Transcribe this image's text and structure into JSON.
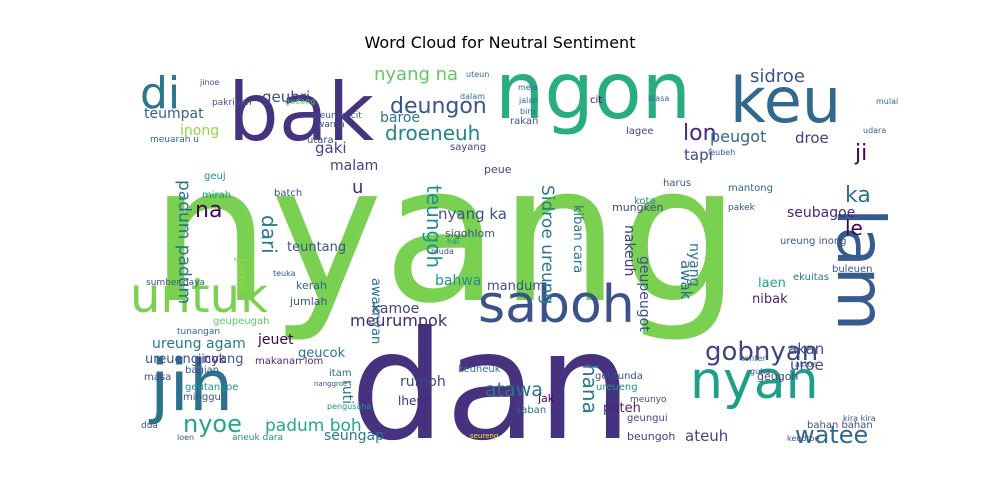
{
  "chart_data": {
    "type": "wordcloud",
    "title": "Word Cloud for Neutral Sentiment",
    "background": "#ffffff",
    "colormap": [
      "#440154",
      "#3b528b",
      "#21918c",
      "#5ec962",
      "#fde725"
    ],
    "words": [
      {
        "text": "nyang",
        "weight": 1.0,
        "color": "#7ad151"
      },
      {
        "text": "dan",
        "weight": 0.78,
        "color": "#46327e"
      },
      {
        "text": "ngon",
        "weight": 0.56,
        "color": "#27ad81"
      },
      {
        "text": "bak",
        "weight": 0.5,
        "color": "#46337e"
      },
      {
        "text": "keu",
        "weight": 0.42,
        "color": "#31688e"
      },
      {
        "text": "lam",
        "weight": 0.42,
        "color": "#365c8d"
      },
      {
        "text": "jih",
        "weight": 0.42,
        "color": "#2c728e"
      },
      {
        "text": "saboh",
        "weight": 0.34,
        "color": "#3b528b"
      },
      {
        "text": "nyan",
        "weight": 0.34,
        "color": "#1f9e89"
      },
      {
        "text": "untuk",
        "weight": 0.3,
        "color": "#7ad151"
      },
      {
        "text": "di",
        "weight": 0.26,
        "color": "#2a788e"
      },
      {
        "text": "gobnyan",
        "weight": 0.16,
        "color": "#414487"
      },
      {
        "text": "nyoe",
        "weight": 0.15,
        "color": "#22a884"
      },
      {
        "text": "watee",
        "weight": 0.15,
        "color": "#31688e"
      },
      {
        "text": "deungon",
        "weight": 0.14,
        "color": "#3b528b"
      },
      {
        "text": "na",
        "weight": 0.14,
        "color": "#440154"
      },
      {
        "text": "ka",
        "weight": 0.14,
        "color": "#2c728e"
      },
      {
        "text": "ji",
        "weight": 0.14,
        "color": "#440154"
      },
      {
        "text": "lon",
        "weight": 0.13,
        "color": "#482878"
      },
      {
        "text": "nyang na",
        "weight": 0.12,
        "color": "#5ec962"
      },
      {
        "text": "sidroe",
        "weight": 0.12,
        "color": "#3b528b"
      },
      {
        "text": "droeneuh",
        "weight": 0.12,
        "color": "#26828e"
      },
      {
        "text": "dari",
        "weight": 0.12,
        "color": "#2a788e"
      },
      {
        "text": "teungoh",
        "weight": 0.12,
        "color": "#21918c"
      },
      {
        "text": "hana",
        "weight": 0.12,
        "color": "#2a788e"
      },
      {
        "text": "le",
        "weight": 0.12,
        "color": "#440154"
      },
      {
        "text": "atawa",
        "weight": 0.11,
        "color": "#2c728e"
      },
      {
        "text": "u",
        "weight": 0.11,
        "color": "#482878"
      },
      {
        "text": "padum padum",
        "weight": 0.1,
        "color": "#2c728e"
      },
      {
        "text": "padum boh",
        "weight": 0.1,
        "color": "#22a884"
      },
      {
        "text": "Sidroe ureung",
        "weight": 0.1,
        "color": "#2a788e"
      },
      {
        "text": "peugot",
        "weight": 0.1,
        "color": "#31688e"
      },
      {
        "text": "ateuh",
        "weight": 0.09,
        "color": "#433e85"
      },
      {
        "text": "uroe",
        "weight": 0.09,
        "color": "#3e4989"
      },
      {
        "text": "ureung agam",
        "weight": 0.09,
        "color": "#2a788e"
      },
      {
        "text": "meurumpok",
        "weight": 0.09,
        "color": "#482878"
      },
      {
        "text": "akan",
        "weight": 0.08,
        "color": "#3b528b"
      },
      {
        "text": "awak",
        "weight": 0.08,
        "color": "#2c728e"
      },
      {
        "text": "nyang ka",
        "weight": 0.08,
        "color": "#3b528b"
      },
      {
        "text": "tapi",
        "weight": 0.08,
        "color": "#3e4989"
      },
      {
        "text": "droe",
        "weight": 0.08,
        "color": "#433e85"
      },
      {
        "text": "teumpat",
        "weight": 0.08,
        "color": "#355f8d"
      },
      {
        "text": "geubri",
        "weight": 0.08,
        "color": "#3e4989"
      },
      {
        "text": "baroe",
        "weight": 0.08,
        "color": "#2a788e"
      },
      {
        "text": "inong",
        "weight": 0.07,
        "color": "#8fd744"
      },
      {
        "text": "gaki",
        "weight": 0.07,
        "color": "#414487"
      },
      {
        "text": "malam",
        "weight": 0.07,
        "color": "#414487"
      },
      {
        "text": "jeuet",
        "weight": 0.07,
        "color": "#440154"
      },
      {
        "text": "kamoe",
        "weight": 0.07,
        "color": "#414487"
      },
      {
        "text": "ureueng nyang",
        "weight": 0.07,
        "color": "#3b528b"
      },
      {
        "text": "rumoh",
        "weight": 0.07,
        "color": "#414487"
      },
      {
        "text": "seubagoe",
        "weight": 0.07,
        "color": "#482878"
      },
      {
        "text": "nyang",
        "weight": 0.07,
        "color": "#2a788e"
      },
      {
        "text": "seungap",
        "weight": 0.07,
        "color": "#2a788e"
      },
      {
        "text": "geucok",
        "weight": 0.06,
        "color": "#2c728e"
      },
      {
        "text": "laen",
        "weight": 0.06,
        "color": "#22a884"
      },
      {
        "text": "nibak",
        "weight": 0.06,
        "color": "#482878"
      },
      {
        "text": "bahwa",
        "weight": 0.06,
        "color": "#21918c"
      },
      {
        "text": "mandum",
        "weight": 0.06,
        "color": "#3b528b"
      },
      {
        "text": "nakeuh",
        "weight": 0.06,
        "color": "#433e85"
      },
      {
        "text": "geupeugot",
        "weight": 0.06,
        "color": "#3b528b"
      },
      {
        "text": "jaroe",
        "weight": 0.06,
        "color": "#8fd744"
      },
      {
        "text": "ruti",
        "weight": 0.06,
        "color": "#2a788e"
      },
      {
        "text": "teuntang",
        "weight": 0.06,
        "color": "#3b528b"
      },
      {
        "text": "puteh",
        "weight": 0.06,
        "color": "#482878"
      },
      {
        "text": "awaknyan",
        "weight": 0.06,
        "color": "#2c728e"
      },
      {
        "text": "kiban cara",
        "weight": 0.06,
        "color": "#2a788e"
      },
      {
        "text": "mungken",
        "weight": 0.05,
        "color": "#414487"
      },
      {
        "text": "jicok",
        "weight": 0.05,
        "color": "#482878"
      },
      {
        "text": "lheuh",
        "weight": 0.05,
        "color": "#482878"
      },
      {
        "text": "jak",
        "weight": 0.05,
        "color": "#440154"
      },
      {
        "text": "beungoh",
        "weight": 0.05,
        "color": "#414487"
      },
      {
        "text": "geugoh",
        "weight": 0.05,
        "color": "#414487"
      },
      {
        "text": "peue",
        "weight": 0.05,
        "color": "#414487"
      },
      {
        "text": "sigohlom",
        "weight": 0.05,
        "color": "#3b528b"
      },
      {
        "text": "kota",
        "weight": 0.05,
        "color": "#21918c"
      },
      {
        "text": "bahan bahan",
        "weight": 0.05,
        "color": "#3b528b"
      },
      {
        "text": "geuj",
        "weight": 0.05,
        "color": "#21918c"
      },
      {
        "text": "mirah",
        "weight": 0.05,
        "color": "#21918c"
      },
      {
        "text": "batch",
        "weight": 0.05,
        "color": "#3b528b"
      },
      {
        "text": "kerah",
        "weight": 0.05,
        "color": "#31688e"
      },
      {
        "text": "jumlah",
        "weight": 0.05,
        "color": "#3b528b"
      },
      {
        "text": "geupeugah",
        "weight": 0.05,
        "color": "#5ec962"
      },
      {
        "text": "tunangan",
        "weight": 0.04,
        "color": "#31688e"
      },
      {
        "text": "bagian",
        "weight": 0.04,
        "color": "#3b528b"
      },
      {
        "text": "geutanyoe",
        "weight": 0.04,
        "color": "#21918c"
      },
      {
        "text": "masa",
        "weight": 0.04,
        "color": "#414487"
      },
      {
        "text": "minggu",
        "weight": 0.04,
        "color": "#3b528b"
      },
      {
        "text": "itam",
        "weight": 0.04,
        "color": "#31688e"
      },
      {
        "text": "makanan lom",
        "weight": 0.04,
        "color": "#482878"
      },
      {
        "text": "keuneuk",
        "weight": 0.04,
        "color": "#2c728e"
      },
      {
        "text": "saban",
        "weight": 0.04,
        "color": "#2c728e"
      },
      {
        "text": "geutunda",
        "weight": 0.04,
        "color": "#3b528b"
      },
      {
        "text": "ureueng",
        "weight": 0.04,
        "color": "#21918c"
      },
      {
        "text": "geungui",
        "weight": 0.04,
        "color": "#414487"
      },
      {
        "text": "meunyo",
        "weight": 0.04,
        "color": "#3b528b"
      },
      {
        "text": "ureung inong",
        "weight": 0.04,
        "color": "#3b528b"
      },
      {
        "text": "buleuen",
        "weight": 0.04,
        "color": "#3b528b"
      },
      {
        "text": "ekuitas",
        "weight": 0.04,
        "color": "#2a788e"
      },
      {
        "text": "mantong",
        "weight": 0.04,
        "color": "#31688e"
      },
      {
        "text": "pakek",
        "weight": 0.04,
        "color": "#3b528b"
      },
      {
        "text": "harus",
        "weight": 0.04,
        "color": "#3b528b"
      },
      {
        "text": "utara",
        "weight": 0.04,
        "color": "#3b528b"
      },
      {
        "text": "sayang",
        "weight": 0.04,
        "color": "#414487"
      },
      {
        "text": "rakan",
        "weight": 0.04,
        "color": "#3b528b"
      },
      {
        "text": "lagee",
        "weight": 0.04,
        "color": "#414487"
      },
      {
        "text": "warna",
        "weight": 0.03,
        "color": "#3b528b"
      },
      {
        "text": "meunan cit",
        "weight": 0.03,
        "color": "#3b528b"
      },
      {
        "text": "pakriban",
        "weight": 0.03,
        "color": "#3b528b"
      },
      {
        "text": "sumber daya",
        "weight": 0.03,
        "color": "#3b528b"
      },
      {
        "text": "gudang",
        "weight": 0.03,
        "color": "#5ec962"
      },
      {
        "text": "jinoe",
        "weight": 0.03,
        "color": "#3b528b"
      },
      {
        "text": "meuarah u",
        "weight": 0.03,
        "color": "#31688e"
      },
      {
        "text": "dalam",
        "weight": 0.03,
        "color": "#2c728e"
      },
      {
        "text": "meja",
        "weight": 0.03,
        "color": "#31688e"
      },
      {
        "text": "jalan",
        "weight": 0.03,
        "color": "#31688e"
      },
      {
        "text": "biru",
        "weight": 0.03,
        "color": "#31688e"
      },
      {
        "text": "uteun",
        "weight": 0.03,
        "color": "#31688e"
      },
      {
        "text": "cit",
        "weight": 0.03,
        "color": "#440154"
      },
      {
        "text": "biasa",
        "weight": 0.03,
        "color": "#31688e"
      },
      {
        "text": "leubeh",
        "weight": 0.03,
        "color": "#31688e"
      },
      {
        "text": "mulai",
        "weight": 0.03,
        "color": "#31688e"
      },
      {
        "text": "udara",
        "weight": 0.03,
        "color": "#31688e"
      },
      {
        "text": "teuka",
        "weight": 0.03,
        "color": "#3b528b"
      },
      {
        "text": "konter",
        "weight": 0.03,
        "color": "#2c728e"
      },
      {
        "text": "aktor",
        "weight": 0.03,
        "color": "#3b528b"
      },
      {
        "text": "guha",
        "weight": 0.03,
        "color": "#3b528b"
      },
      {
        "text": "muda",
        "weight": 0.03,
        "color": "#3b528b"
      },
      {
        "text": "hai",
        "weight": 0.03,
        "color": "#21918c"
      },
      {
        "text": "dua",
        "weight": 0.03,
        "color": "#3b528b"
      },
      {
        "text": "loen",
        "weight": 0.03,
        "color": "#3b528b"
      },
      {
        "text": "aneuk dara",
        "weight": 0.03,
        "color": "#21918c"
      },
      {
        "text": "pengusaha",
        "weight": 0.03,
        "color": "#21918c"
      },
      {
        "text": "kira kira",
        "weight": 0.03,
        "color": "#3b528b"
      },
      {
        "text": "keudroe",
        "weight": 0.03,
        "color": "#3b528b"
      },
      {
        "text": "nanggroe",
        "weight": 0.02,
        "color": "#3b528b"
      },
      {
        "text": "seureng",
        "weight": 0.02,
        "color": "#fde725"
      }
    ]
  }
}
